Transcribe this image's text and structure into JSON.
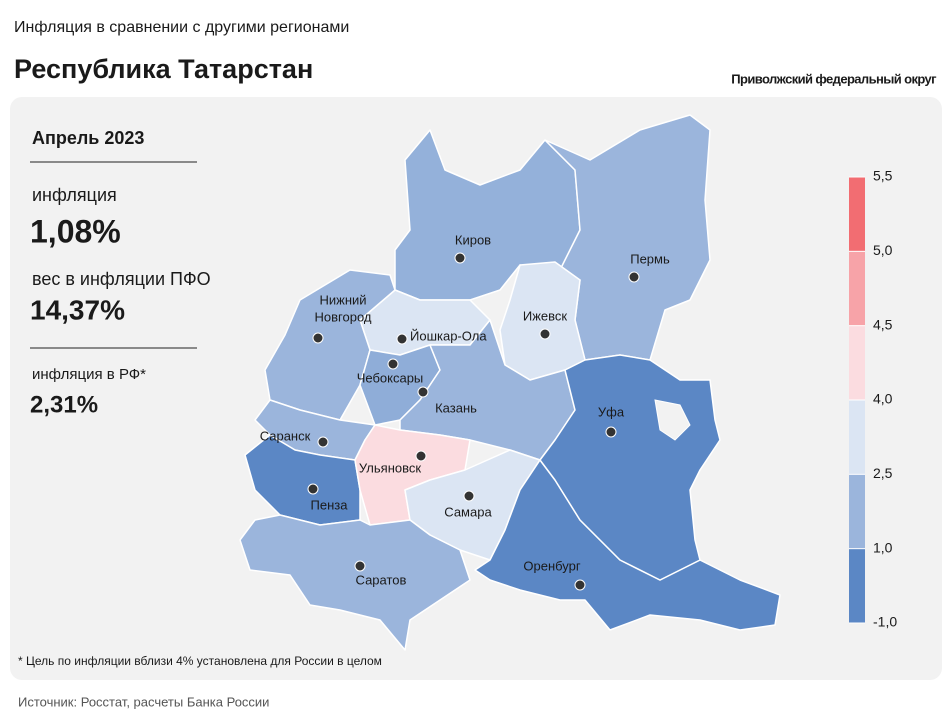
{
  "header": {
    "subtitle": "Инфляция в сравнении с другими регионами",
    "title": "Республика Татарстан",
    "district": "Приволжский федеральный округ"
  },
  "panel": {
    "period": "Апрель 2023",
    "inflation_label": "инфляция",
    "inflation_value": "1,08%",
    "weight_label": "вес в инфляции ПФО",
    "weight_value": "14,37%",
    "rf_label": "инфляция в РФ*",
    "rf_value": "2,31%"
  },
  "map": {
    "cities": [
      {
        "lines": [
          "Киров"
        ]
      },
      {
        "lines": [
          "Пермь"
        ]
      },
      {
        "lines": [
          "Ижевск"
        ]
      },
      {
        "lines": [
          "Йошкар-Ола"
        ]
      },
      {
        "lines": [
          "Нижний",
          "Новгород"
        ]
      },
      {
        "lines": [
          "Чебоксары"
        ]
      },
      {
        "lines": [
          "Казань"
        ]
      },
      {
        "lines": [
          "Уфа"
        ]
      },
      {
        "lines": [
          "Саранск"
        ]
      },
      {
        "lines": [
          "Ульяновск"
        ]
      },
      {
        "lines": [
          "Самара"
        ]
      },
      {
        "lines": [
          "Пенза"
        ]
      },
      {
        "lines": [
          "Саратов"
        ]
      },
      {
        "lines": [
          "Оренбург"
        ]
      }
    ]
  },
  "legend": {
    "ticks": [
      {
        "value": -1.0,
        "label": "-1,0"
      },
      {
        "value": 1.0,
        "label": "1,0"
      },
      {
        "value": 2.5,
        "label": "2,5"
      },
      {
        "value": 4.0,
        "label": "4,0"
      },
      {
        "value": 4.5,
        "label": "4,5"
      },
      {
        "value": 5.0,
        "label": "5,0"
      },
      {
        "value": 5.5,
        "label": "5,5"
      }
    ],
    "colors": [
      "#5b87c5",
      "#9bb5dc",
      "#dbe5f3",
      "#fbdce0",
      "#f7a3a8",
      "#f26d72"
    ]
  },
  "footnote": "* Цель по инфляции вблизи 4% установлена для России в целом",
  "source": "Источник: Росстат, расчеты Банка России"
}
